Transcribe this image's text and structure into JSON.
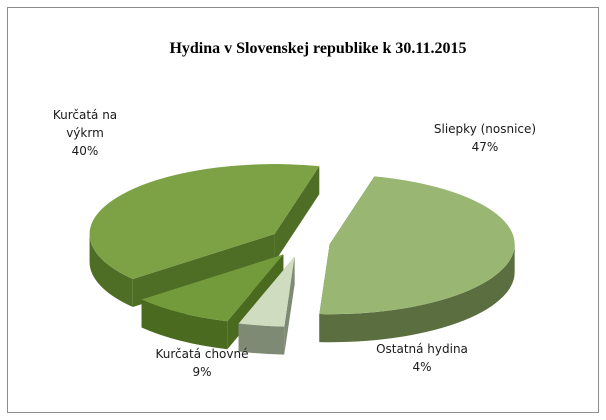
{
  "chart_data": {
    "type": "pie",
    "title": "Hydina v Slovenskej republike k 30.11.2015",
    "slices": [
      {
        "name": "Sliepky (nosnice)",
        "value": 47,
        "value_label": "47%",
        "color": "#9ab673",
        "dark": "#5a6e3f"
      },
      {
        "name": "Ostatná hydina",
        "value": 4,
        "value_label": "4%",
        "color": "#d0dcc0",
        "dark": "#7e8a74"
      },
      {
        "name": "Kurčatá chovné",
        "value": 9,
        "value_label": "9%",
        "color": "#739b3c",
        "dark": "#4a6a20"
      },
      {
        "name": "Kurčatá na výkrm",
        "name_lines": [
          "Kurčatá na",
          "výkrm"
        ],
        "value": 40,
        "value_label": "40%",
        "color": "#7da246",
        "dark": "#4f6e25"
      }
    ],
    "legend": "none",
    "style": "3d-exploded"
  }
}
